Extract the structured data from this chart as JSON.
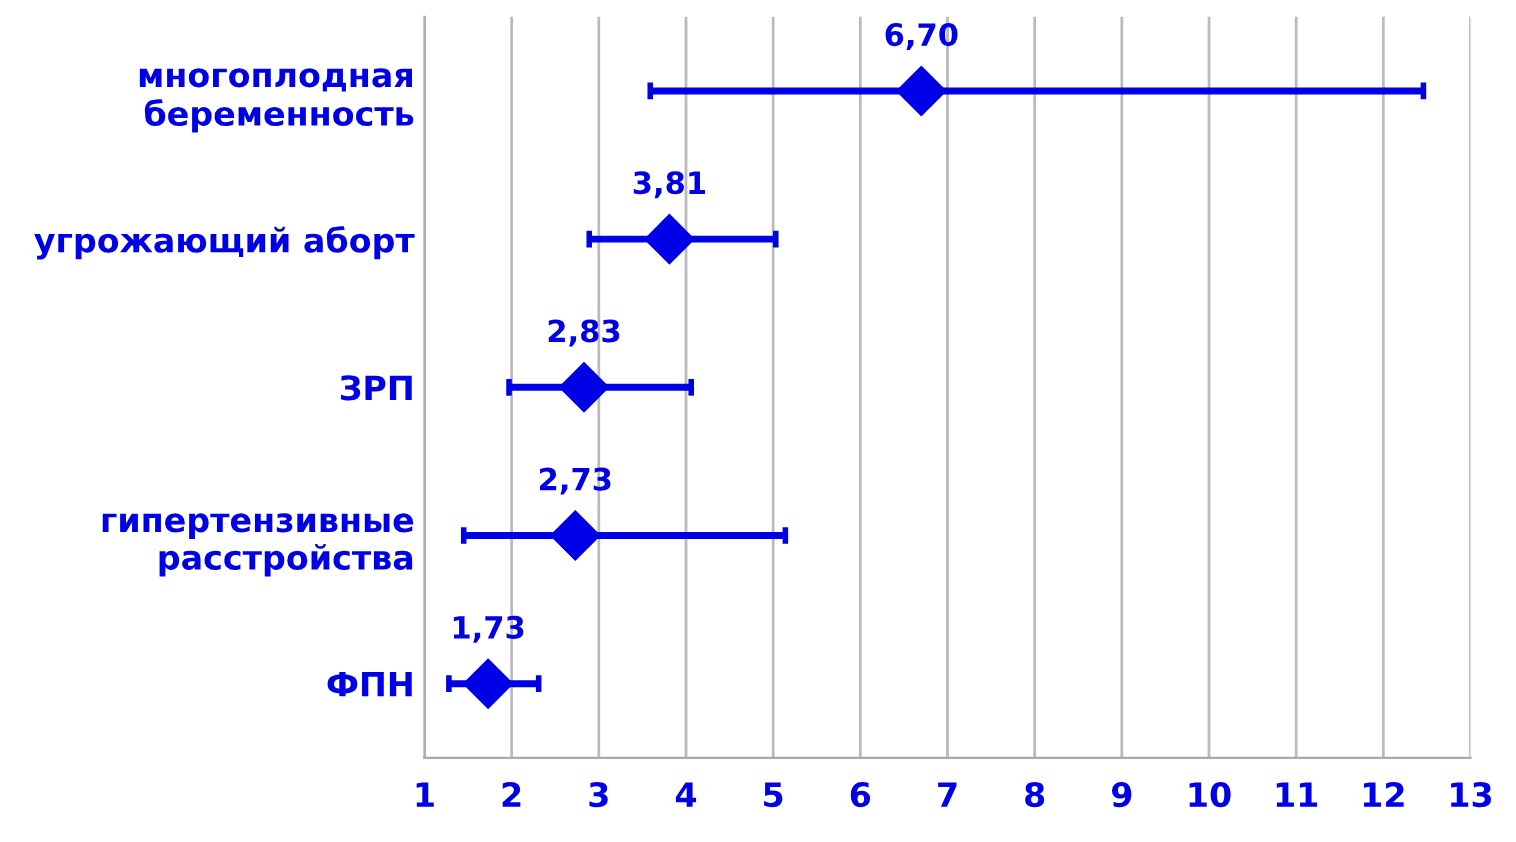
{
  "chart_data": {
    "type": "scatter",
    "orientation": "horizontal",
    "categories": [
      "многоплодная\nбеременность",
      "угрожающий аборт",
      "ЗРП",
      "гипертензивные\nрасстройства",
      "ФПН"
    ],
    "series": [
      {
        "color": "#0000e6",
        "values": [
          6.7,
          3.81,
          2.83,
          2.73,
          1.73
        ],
        "errors": [
          [
            3.59,
            12.46
          ],
          [
            2.89,
            5.03
          ],
          [
            1.97,
            4.06
          ],
          [
            1.45,
            5.14
          ],
          [
            1.28,
            2.31
          ]
        ],
        "value_labels": [
          "6,70",
          "3,81",
          "2,83",
          "2,73",
          "1,73"
        ]
      }
    ],
    "marker": "diamond",
    "xlim": [
      1,
      13
    ],
    "xticks": [
      1,
      2,
      3,
      4,
      5,
      6,
      7,
      8,
      9,
      10,
      11,
      12,
      13
    ],
    "grid": "x"
  }
}
